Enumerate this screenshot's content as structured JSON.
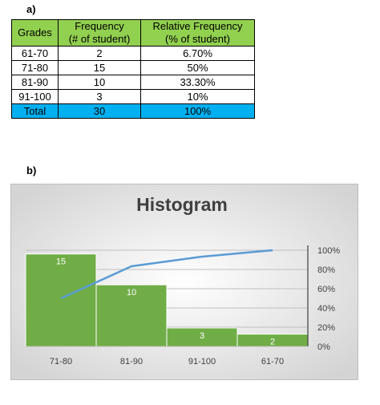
{
  "section_a_label": "a)",
  "section_b_label": "b)",
  "table": {
    "headers": {
      "grades": "Grades",
      "frequency_line1": "Frequency",
      "frequency_line2": "(# of student)",
      "relative_line1": "Relative Frequency",
      "relative_line2": "(% of student)"
    },
    "rows": [
      {
        "grade": "61-70",
        "frequency": "2",
        "relative": "6.70%"
      },
      {
        "grade": "71-80",
        "frequency": "15",
        "relative": "50%"
      },
      {
        "grade": "81-90",
        "frequency": "10",
        "relative": "33.30%"
      },
      {
        "grade": "91-100",
        "frequency": "3",
        "relative": "10%"
      }
    ],
    "total": {
      "label": "Total",
      "frequency": "30",
      "relative": "100%"
    }
  },
  "chart_data": {
    "type": "bar",
    "title": "Histogram",
    "categories": [
      "71-80",
      "81-90",
      "91-100",
      "61-70"
    ],
    "series": [
      {
        "type": "bar",
        "values": [
          15,
          10,
          3,
          2
        ],
        "color": "#70ad47"
      },
      {
        "type": "line",
        "axis": "secondary",
        "values": [
          50,
          83.3,
          93.3,
          100
        ],
        "color": "#5b9bd5"
      }
    ],
    "data_labels": [
      "15",
      "10",
      "3",
      "2"
    ],
    "ylim": [
      0,
      16
    ],
    "y2lim": [
      0,
      100
    ],
    "y2_ticks": [
      "0%",
      "20%",
      "40%",
      "60%",
      "80%",
      "100%"
    ],
    "y2_tick_values": [
      0,
      20,
      40,
      60,
      80,
      100
    ],
    "grid": true,
    "legend": "none",
    "background": "radial-gradient-grey"
  }
}
